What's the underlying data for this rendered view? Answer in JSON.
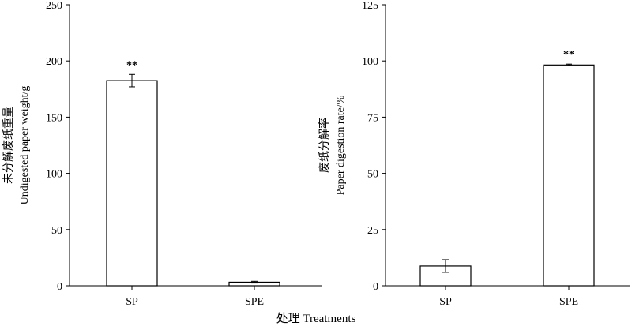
{
  "chart_data": [
    {
      "type": "bar",
      "categories": [
        "SP",
        "SPE"
      ],
      "values": [
        182.5,
        3.2
      ],
      "errors": [
        5.5,
        0.8
      ],
      "significance": [
        "**",
        ""
      ],
      "ylim": [
        0,
        250
      ],
      "yticks": [
        "0",
        "50",
        "100",
        "150",
        "200",
        "250"
      ],
      "ylabel_cn": "未分解废纸重量",
      "ylabel_en": "Undigested paper weight/g",
      "bar_fill": "#ffffff",
      "bar_stroke": "#000000"
    },
    {
      "type": "bar",
      "categories": [
        "SP",
        "SPE"
      ],
      "values": [
        8.8,
        98.2
      ],
      "errors": [
        2.8,
        0.4
      ],
      "significance": [
        "",
        "**"
      ],
      "ylim": [
        0,
        125
      ],
      "yticks": [
        "0",
        "25",
        "50",
        "75",
        "100",
        "125"
      ],
      "ylabel_cn": "废纸分解率",
      "ylabel_en": "Paper digestion rate/%",
      "bar_fill": "#ffffff",
      "bar_stroke": "#000000"
    }
  ],
  "xlabel": "处理 Treatments"
}
